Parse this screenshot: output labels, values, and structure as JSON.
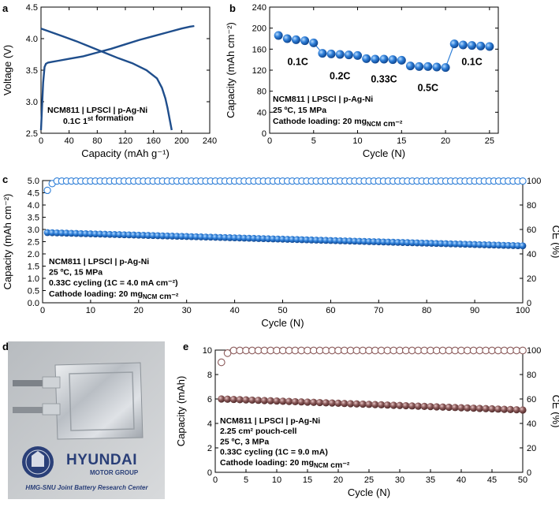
{
  "figure": {
    "panel_labels": [
      "a",
      "b",
      "c",
      "d",
      "e"
    ],
    "photo": {
      "device": "pouch-cell",
      "logo_text": "HYUNDAI",
      "logo_subtext": "MOTOR GROUP",
      "caption": "HMG-SNU Joint Battery Research Center",
      "seal": "university-seal-icon"
    }
  },
  "chart_data": [
    {
      "id": "a",
      "type": "line",
      "xlabel": "Capacity (mAh g⁻¹)",
      "ylabel": "Voltage (V)",
      "xlim": [
        0,
        240
      ],
      "ylim": [
        2.5,
        4.5
      ],
      "xticks": [
        0,
        40,
        80,
        120,
        160,
        200,
        240
      ],
      "yticks": [
        2.5,
        3.0,
        3.5,
        4.0,
        4.5
      ],
      "annotation": [
        "NCM811 | LPSCl | p-Ag-Ni",
        "0.1C 1st formation"
      ],
      "color": "#1f4e8c",
      "series": [
        {
          "x": [
            0,
            3,
            5,
            7,
            10,
            15,
            25,
            40,
            60,
            80,
            100,
            120,
            140,
            160,
            180,
            200,
            212,
            218
          ],
          "y": [
            2.55,
            3.3,
            3.55,
            3.6,
            3.62,
            3.63,
            3.65,
            3.68,
            3.72,
            3.78,
            3.84,
            3.91,
            3.98,
            4.04,
            4.1,
            4.16,
            4.19,
            4.2
          ]
        },
        {
          "x": [
            0,
            10,
            30,
            50,
            70,
            90,
            110,
            130,
            150,
            165,
            172,
            177,
            180,
            183,
            186
          ],
          "y": [
            4.16,
            4.12,
            4.04,
            3.96,
            3.87,
            3.78,
            3.69,
            3.61,
            3.5,
            3.37,
            3.22,
            3.05,
            2.9,
            2.72,
            2.55
          ]
        }
      ]
    },
    {
      "id": "b",
      "type": "scatter",
      "xlabel": "Cycle (N)",
      "ylabel": "Capacity (mAh cm⁻²)",
      "xlim": [
        0,
        26
      ],
      "ylim": [
        0,
        240
      ],
      "xticks": [
        0,
        5,
        10,
        15,
        20,
        25
      ],
      "yticks": [
        0,
        40,
        80,
        120,
        160,
        200,
        240
      ],
      "annotation": [
        "NCM811 | LPSCl | p-Ag-Ni",
        "25 ºC, 15 MPa",
        "Cathode loading: 20 mgNCM cm⁻²"
      ],
      "rate_labels": [
        {
          "text": "0.1C",
          "x": 3.2,
          "y": 145
        },
        {
          "text": "0.2C",
          "x": 8.0,
          "y": 118
        },
        {
          "text": "0.33C",
          "x": 13.0,
          "y": 112
        },
        {
          "text": "0.5C",
          "x": 18.0,
          "y": 95
        },
        {
          "text": "0.1C",
          "x": 23.0,
          "y": 145
        }
      ],
      "x": [
        1,
        2,
        3,
        4,
        5,
        6,
        7,
        8,
        9,
        10,
        11,
        12,
        13,
        14,
        15,
        16,
        17,
        18,
        19,
        20,
        21,
        22,
        23,
        24,
        25
      ],
      "values": [
        186,
        180,
        178,
        176,
        172,
        152,
        151,
        150,
        149,
        148,
        142,
        141,
        141,
        140,
        139,
        128,
        127,
        127,
        126,
        125,
        170,
        168,
        167,
        166,
        165
      ],
      "color": "#2f7fd8"
    },
    {
      "id": "c",
      "type": "scatter",
      "xlabel": "Cycle (N)",
      "ylabel": "Capacity (mAh cm⁻²)",
      "y2label": "CE (%)",
      "xlim": [
        0,
        100
      ],
      "ylim": [
        0,
        5
      ],
      "y2lim": [
        0,
        100
      ],
      "xticks": [
        0,
        10,
        20,
        30,
        40,
        50,
        60,
        70,
        80,
        90,
        100
      ],
      "yticks": [
        0,
        0.5,
        1.0,
        1.5,
        2.0,
        2.5,
        3.0,
        3.5,
        4.0,
        4.5,
        5.0
      ],
      "y2ticks": [
        0,
        20,
        40,
        60,
        80,
        100
      ],
      "annotation": [
        "NCM811 | LPSCl | p-Ag-Ni",
        "25 ºC, 15 MPa",
        "0.33C cycling (1C = 4.0 mA cm⁻²)",
        "Cathode loading: 20 mgNCM cm⁻²"
      ],
      "series": [
        {
          "name": "Capacity",
          "n": 100,
          "start": 2.87,
          "end": 2.33,
          "color": "#2f7fd8"
        },
        {
          "name": "CE",
          "n": 100,
          "first": [
            92,
            97.5
          ],
          "plateau": 99.6,
          "color": "#2f7fd8"
        }
      ]
    },
    {
      "id": "e",
      "type": "scatter",
      "xlabel": "Cycle (N)",
      "ylabel": "Capacity (mAh)",
      "y2label": "CE (%)",
      "xlim": [
        0,
        50
      ],
      "ylim": [
        0,
        10
      ],
      "y2lim": [
        0,
        100
      ],
      "xticks": [
        0,
        5,
        10,
        15,
        20,
        25,
        30,
        35,
        40,
        45,
        50
      ],
      "yticks": [
        0,
        2,
        4,
        6,
        8,
        10
      ],
      "y2ticks": [
        0,
        20,
        40,
        60,
        80,
        100
      ],
      "annotation": [
        "NCM811 | LPSCl | p-Ag-Ni",
        "2.25 cm² pouch-cell",
        "25 ºC, 3 MPa",
        "0.33C cycling (1C = 9.0 mA)",
        "Cathode loading: 20 mgNCM cm⁻²"
      ],
      "series": [
        {
          "name": "Capacity",
          "n": 50,
          "start": 6.0,
          "end": 5.1,
          "color": "#8b5a5a"
        },
        {
          "name": "CE",
          "n": 50,
          "first": [
            90,
            97.5
          ],
          "plateau": 99.7,
          "color": "#8b5a5a"
        }
      ]
    }
  ]
}
